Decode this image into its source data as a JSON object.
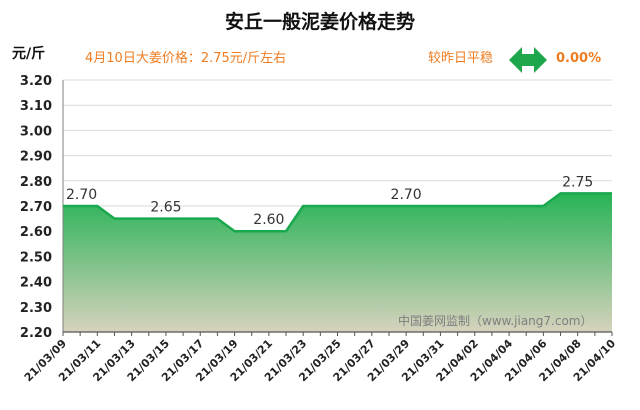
{
  "chart_data": {
    "type": "area",
    "title": "安丘一般泥姜价格走势",
    "y_unit": "元/斤",
    "price_note": "4月10日大姜价格：2.75元/斤左右",
    "comparison_label": "较昨日平稳",
    "comparison_value": "0.00%",
    "watermark": "中国姜网监制（www.jiang7.com）",
    "ylim": [
      2.2,
      3.2
    ],
    "yticks": [
      "3.20",
      "3.10",
      "3.00",
      "2.90",
      "2.80",
      "2.70",
      "2.60",
      "2.50",
      "2.40",
      "2.30",
      "2.20"
    ],
    "categories": [
      "21/03/09",
      "21/03/11",
      "21/03/13",
      "21/03/15",
      "21/03/17",
      "21/03/19",
      "21/03/21",
      "21/03/23",
      "21/03/25",
      "21/03/27",
      "21/03/29",
      "21/03/31",
      "21/04/02",
      "21/04/04",
      "21/04/06",
      "21/04/08",
      "21/04/10"
    ],
    "x": [
      "21/03/09",
      "21/03/10",
      "21/03/11",
      "21/03/12",
      "21/03/13",
      "21/03/14",
      "21/03/15",
      "21/03/16",
      "21/03/17",
      "21/03/18",
      "21/03/19",
      "21/03/20",
      "21/03/21",
      "21/03/22",
      "21/03/23",
      "21/03/24",
      "21/03/25",
      "21/03/26",
      "21/03/27",
      "21/03/28",
      "21/03/29",
      "21/03/30",
      "21/03/31",
      "21/04/01",
      "21/04/02",
      "21/04/03",
      "21/04/04",
      "21/04/05",
      "21/04/06",
      "21/04/07",
      "21/04/08",
      "21/04/09",
      "21/04/10"
    ],
    "values": [
      2.7,
      2.7,
      2.7,
      2.65,
      2.65,
      2.65,
      2.65,
      2.65,
      2.65,
      2.65,
      2.6,
      2.6,
      2.6,
      2.6,
      2.7,
      2.7,
      2.7,
      2.7,
      2.7,
      2.7,
      2.7,
      2.7,
      2.7,
      2.7,
      2.7,
      2.7,
      2.7,
      2.7,
      2.7,
      2.75,
      2.75,
      2.75,
      2.75
    ],
    "data_labels": [
      {
        "x": "21/03/09",
        "text": "2.70"
      },
      {
        "x": "21/03/15",
        "text": "2.65"
      },
      {
        "x": "21/03/21",
        "text": "2.60"
      },
      {
        "x": "21/03/29",
        "text": "2.70"
      },
      {
        "x": "21/04/08",
        "text": "2.75"
      }
    ],
    "colors": {
      "line": "#19a84d",
      "fill_top": "#27b356",
      "fill_bottom": "#d6d2bd",
      "accent": "#ee7d22",
      "arrow": "#1ea64a"
    }
  }
}
